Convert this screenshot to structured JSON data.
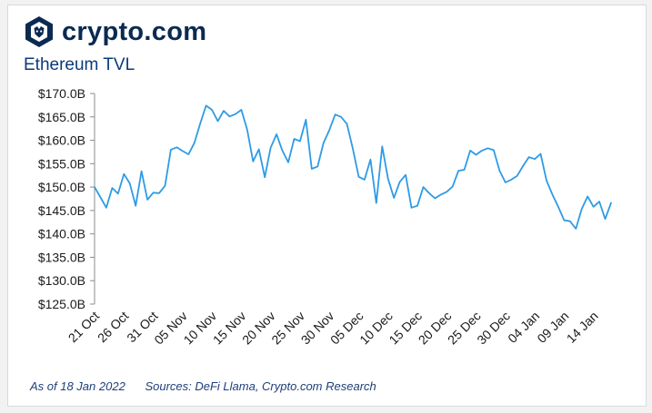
{
  "brand": {
    "name": "crypto.com",
    "icon": "crypto-com-lion-shield",
    "color": "#0b2a52"
  },
  "title": "Ethereum TVL",
  "footer": {
    "as_of": "As of 18 Jan 2022",
    "sources": "Sources: DeFi Llama, Crypto.com Research"
  },
  "chart_data": {
    "type": "line",
    "title": "Ethereum TVL",
    "xlabel": "",
    "ylabel": "",
    "x_tick_labels": [
      "21 Oct",
      "26 Oct",
      "31 Oct",
      "05 Nov",
      "10 Nov",
      "15 Nov",
      "20 Nov",
      "25 Nov",
      "30 Nov",
      "05 Dec",
      "10 Dec",
      "15 Dec",
      "20 Dec",
      "25 Dec",
      "30 Dec",
      "04 Jan",
      "09 Jan",
      "14 Jan"
    ],
    "y_tick_labels": [
      "$125.0B",
      "$130.0B",
      "$135.0B",
      "$140.0B",
      "$145.0B",
      "$150.0B",
      "$155.0B",
      "$160.0B",
      "$165.0B",
      "$170.0B"
    ],
    "ylim": [
      125,
      170
    ],
    "x_start": "2021-10-21",
    "x_end": "2022-01-17",
    "grid": false,
    "line_color": "#2e9be6",
    "series": [
      {
        "x": [
          "2021-10-21",
          "2021-10-22",
          "2021-10-23",
          "2021-10-24",
          "2021-10-25",
          "2021-10-26",
          "2021-10-27",
          "2021-10-28",
          "2021-10-29",
          "2021-10-30",
          "2021-10-31",
          "2021-11-01",
          "2021-11-02",
          "2021-11-03",
          "2021-11-04",
          "2021-11-05",
          "2021-11-06",
          "2021-11-07",
          "2021-11-08",
          "2021-11-09",
          "2021-11-10",
          "2021-11-11",
          "2021-11-12",
          "2021-11-13",
          "2021-11-14",
          "2021-11-15",
          "2021-11-16",
          "2021-11-17",
          "2021-11-18",
          "2021-11-19",
          "2021-11-20",
          "2021-11-21",
          "2021-11-22",
          "2021-11-23",
          "2021-11-24",
          "2021-11-25",
          "2021-11-26",
          "2021-11-27",
          "2021-11-28",
          "2021-11-29",
          "2021-11-30",
          "2021-12-01",
          "2021-12-02",
          "2021-12-03",
          "2021-12-04",
          "2021-12-05",
          "2021-12-06",
          "2021-12-07",
          "2021-12-08",
          "2021-12-09",
          "2021-12-10",
          "2021-12-11",
          "2021-12-12",
          "2021-12-13",
          "2021-12-14",
          "2021-12-15",
          "2021-12-16",
          "2021-12-17",
          "2021-12-18",
          "2021-12-19",
          "2021-12-20",
          "2021-12-21",
          "2021-12-22",
          "2021-12-23",
          "2021-12-24",
          "2021-12-25",
          "2021-12-26",
          "2021-12-27",
          "2021-12-28",
          "2021-12-29",
          "2021-12-30",
          "2021-12-31",
          "2022-01-01",
          "2022-01-02",
          "2022-01-03",
          "2022-01-04",
          "2022-01-05",
          "2022-01-06",
          "2022-01-07",
          "2022-01-08",
          "2022-01-09",
          "2022-01-10",
          "2022-01-11",
          "2022-01-12",
          "2022-01-13",
          "2022-01-14",
          "2022-01-15",
          "2022-01-16",
          "2022-01-17"
        ],
        "values": [
          150.0,
          147.8,
          145.6,
          149.8,
          148.6,
          152.8,
          150.8,
          146.0,
          153.4,
          147.3,
          148.8,
          148.7,
          150.3,
          158.0,
          158.5,
          157.7,
          157.0,
          159.4,
          163.6,
          167.4,
          166.5,
          164.1,
          166.3,
          165.1,
          165.6,
          166.5,
          162.3,
          155.5,
          158.1,
          152.1,
          158.4,
          161.3,
          157.8,
          155.3,
          160.3,
          159.8,
          164.4,
          153.9,
          154.4,
          159.4,
          162.2,
          165.5,
          165.0,
          163.5,
          158.2,
          152.2,
          151.6,
          155.9,
          146.6,
          158.7,
          151.8,
          147.7,
          151.1,
          152.6,
          145.6,
          146.0,
          150.0,
          148.7,
          147.6,
          148.4,
          149.0,
          150.1,
          153.5,
          153.7,
          157.8,
          156.9,
          157.8,
          158.3,
          157.9,
          153.5,
          151.0,
          151.6,
          152.4,
          154.5,
          156.4,
          156.0,
          157.1,
          151.4,
          148.4,
          145.8,
          142.9,
          142.7,
          141.1,
          145.3,
          148.0,
          145.8,
          146.9,
          143.2,
          146.6
        ]
      }
    ]
  }
}
